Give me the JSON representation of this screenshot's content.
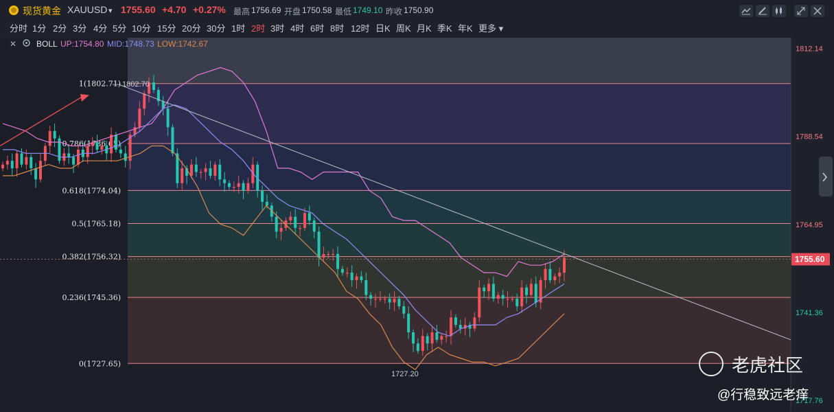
{
  "header": {
    "title": "现货黄金",
    "symbol": "XAUUSD",
    "dropdown_glyph": "▾",
    "price": "1755.60",
    "change": "+4.70",
    "change_pct": "+0.27%",
    "high_label": "最高",
    "high": "1756.69",
    "open_label": "开盘",
    "open": "1750.58",
    "low_label": "最低",
    "low": "1749.10",
    "prev_close_label": "昨收",
    "prev_close": "1750.90"
  },
  "timeframes": [
    "分时",
    "1分",
    "2分",
    "3分",
    "4分",
    "5分",
    "10分",
    "15分",
    "20分",
    "30分",
    "1时",
    "2时",
    "3时",
    "4时",
    "6时",
    "8时",
    "12时",
    "日K",
    "周K",
    "月K",
    "季K",
    "年K",
    "更多"
  ],
  "active_timeframe": "2时",
  "toolbar_icons": [
    "indicator-icon",
    "draw-icon",
    "candle-type-icon",
    "expand-icon",
    "close-icon"
  ],
  "indicator_bar": {
    "name": "BOLL",
    "up": "UP:1754.80",
    "mid": "MID:1748.73",
    "low": "LOW:1742.67",
    "colors": {
      "up": "#e07bd5",
      "mid": "#8f8df5",
      "low": "#d9884e"
    }
  },
  "watermark": {
    "brand": "老虎社区",
    "author": "@行稳致远老痒"
  },
  "chart_data": {
    "type": "candlestick",
    "ylim": [
      1715,
      1815
    ],
    "y_ticks": [
      "1812.14",
      "1788.54",
      "1764.95",
      "1741.36",
      "1717.76"
    ],
    "y_tick_values": [
      1812.14,
      1788.54,
      1764.95,
      1741.36,
      1717.76
    ],
    "current_price": "1755.60",
    "current_price_value": 1755.6,
    "fib_levels": [
      {
        "label": "1(1802.71)",
        "value": 1802.71
      },
      {
        "label": "0.786(1786.65)",
        "value": 1786.65
      },
      {
        "label": "0.618(1774.04)",
        "value": 1774.04
      },
      {
        "label": "0.5(1765.18)",
        "value": 1765.18
      },
      {
        "label": "0.382(1756.32)",
        "value": 1756.32
      },
      {
        "label": "0.236(1745.36)",
        "value": 1745.36
      },
      {
        "label": "0(1727.65)",
        "value": 1727.65
      }
    ],
    "fib_zone_colors": [
      "#3a3d4c",
      "#2f2e52",
      "#242b4a",
      "#1f3a45",
      "#213c3c",
      "#34362f",
      "#3a2d31"
    ],
    "high_marker": {
      "label": "1802.70",
      "value": 1802.7
    },
    "low_marker": {
      "label": "1727.20",
      "value": 1727.2
    },
    "trendline": {
      "from": [
        0.15,
        1802.5
      ],
      "to": [
        1.0,
        1734
      ]
    },
    "closes": [
      1781,
      1782,
      1780,
      1784,
      1781,
      1783,
      1780,
      1777,
      1782,
      1786,
      1790,
      1788,
      1782,
      1784,
      1783,
      1781,
      1785,
      1783,
      1786,
      1787,
      1785,
      1786,
      1784,
      1789,
      1785,
      1784,
      1782,
      1789,
      1791,
      1796,
      1800,
      1803,
      1801,
      1798,
      1796,
      1791,
      1784,
      1776,
      1780,
      1778,
      1781,
      1779,
      1779,
      1780,
      1778,
      1781,
      1777,
      1776,
      1775,
      1775,
      1776,
      1774,
      1776,
      1781,
      1774,
      1771,
      1770,
      1767,
      1763,
      1764,
      1766,
      1767,
      1764,
      1764,
      1768,
      1766,
      1763,
      1756,
      1757,
      1757,
      1757,
      1753,
      1752,
      1752,
      1750,
      1751,
      1750,
      1746,
      1745,
      1745,
      1745,
      1745,
      1744,
      1745,
      1743,
      1741,
      1736,
      1733,
      1731,
      1735,
      1733,
      1736,
      1734,
      1735,
      1735,
      1740,
      1738,
      1737,
      1738,
      1737,
      1740,
      1748,
      1747,
      1749,
      1745,
      1746,
      1745,
      1745,
      1745,
      1743,
      1748,
      1746,
      1749,
      1744,
      1750,
      1753,
      1750,
      1751,
      1752,
      1756
    ],
    "boll_up": [
      1792,
      1791,
      1790,
      1788,
      1787,
      1787,
      1786,
      1786,
      1787,
      1788,
      1789,
      1790,
      1791,
      1792,
      1796,
      1801,
      1803,
      1805,
      1806,
      1807,
      1806,
      1803,
      1798,
      1790,
      1780,
      1780,
      1779,
      1777,
      1779,
      1779,
      1779,
      1779,
      1774,
      1772,
      1767,
      1766,
      1766,
      1764,
      1762,
      1760,
      1756,
      1754,
      1752,
      1752,
      1751,
      1755,
      1754,
      1754,
      1755,
      1757
    ],
    "boll_mid": [
      1785,
      1785,
      1784,
      1784,
      1784,
      1783,
      1783,
      1784,
      1784,
      1785,
      1786,
      1788,
      1790,
      1793,
      1796,
      1797,
      1796,
      1793,
      1790,
      1787,
      1785,
      1782,
      1778,
      1775,
      1772,
      1770,
      1769,
      1768,
      1765,
      1763,
      1761,
      1758,
      1755,
      1752,
      1749,
      1746,
      1742,
      1739,
      1736,
      1735,
      1737,
      1738,
      1738,
      1738,
      1740,
      1741,
      1743,
      1745,
      1747,
      1749
    ],
    "boll_low": [
      1778,
      1778,
      1779,
      1780,
      1781,
      1780,
      1780,
      1782,
      1782,
      1782,
      1782,
      1783,
      1784,
      1786,
      1786,
      1784,
      1780,
      1775,
      1768,
      1765,
      1764,
      1762,
      1766,
      1770,
      1767,
      1764,
      1761,
      1758,
      1755,
      1752,
      1747,
      1745,
      1741,
      1738,
      1732,
      1728,
      1726,
      1730,
      1732,
      1730,
      1729,
      1728,
      1728,
      1727,
      1728,
      1729,
      1732,
      1735,
      1738,
      1741
    ]
  }
}
